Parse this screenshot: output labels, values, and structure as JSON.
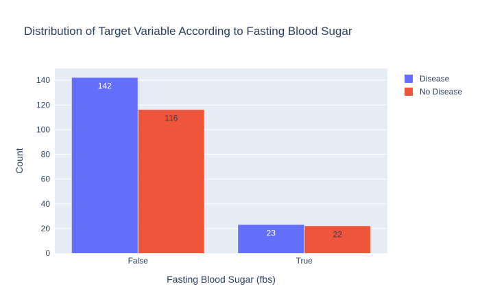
{
  "chart_data": {
    "type": "bar",
    "title": "Distribution of Target Variable According to Fasting Blood Sugar",
    "xlabel": "Fasting Blood Sugar (fbs)",
    "ylabel": "Count",
    "categories": [
      "False",
      "True"
    ],
    "series": [
      {
        "name": "Disease",
        "values": [
          142,
          23
        ],
        "color": "#636efa",
        "label_color": "#ffffff"
      },
      {
        "name": "No Disease",
        "values": [
          116,
          22
        ],
        "color": "#ef553b",
        "label_color": "#2a3f5f"
      }
    ],
    "ylim": [
      0,
      149.5
    ],
    "yticks": [
      0,
      20,
      40,
      60,
      80,
      100,
      120,
      140
    ],
    "grid": true,
    "legend_position": "top-right",
    "plot_background": "#e5ecf6"
  }
}
